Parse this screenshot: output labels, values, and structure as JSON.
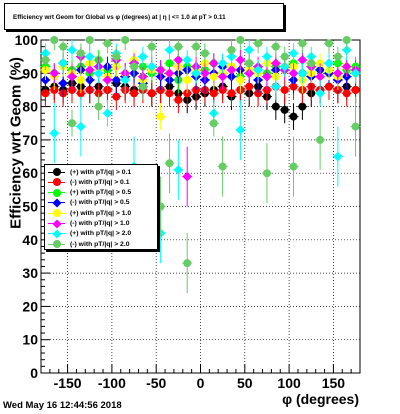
{
  "title": "Efficiency wrt Geom for Global vs φ (degrees) at | η | <= 1.0 at pT > 0.11",
  "footer": "Wed May 16 12:44:56 2018",
  "chart_data": {
    "type": "scatter",
    "xlabel": "φ (degrees)",
    "ylabel": "Efficiency wrt Geom (%)",
    "xlim": [
      -180,
      180
    ],
    "ylim": [
      0,
      100
    ],
    "xticks": [
      -150,
      -100,
      -50,
      0,
      50,
      100,
      150
    ],
    "yticks": [
      0,
      10,
      20,
      30,
      40,
      50,
      60,
      70,
      80,
      90,
      100
    ],
    "grid": true,
    "legend_position": "middle-left",
    "series": [
      {
        "name": "(+) with pT/|q| > 0.1",
        "color": "#000000",
        "marker": "circle",
        "x": [
          -175,
          -165,
          -155,
          -145,
          -135,
          -125,
          -115,
          -105,
          -95,
          -85,
          -75,
          -65,
          -55,
          -45,
          -35,
          -25,
          -15,
          -5,
          5,
          15,
          25,
          35,
          45,
          55,
          65,
          75,
          85,
          95,
          105,
          115,
          125,
          135,
          145,
          155,
          165,
          175
        ],
        "y": [
          85,
          86,
          85,
          87,
          86,
          85,
          86,
          85,
          87,
          86,
          85,
          86,
          84,
          85,
          86,
          84,
          82,
          83,
          84,
          85,
          86,
          83,
          85,
          84,
          86,
          83,
          80,
          79,
          77,
          80,
          84,
          85,
          86,
          85,
          86,
          85
        ]
      },
      {
        "name": "(-) with pT/|q| > 0.1",
        "color": "#ff0000",
        "marker": "circle",
        "x": [
          -175,
          -165,
          -155,
          -145,
          -135,
          -125,
          -115,
          -105,
          -95,
          -85,
          -75,
          -65,
          -55,
          -45,
          -35,
          -25,
          -15,
          -5,
          5,
          15,
          25,
          35,
          45,
          55,
          65,
          75,
          85,
          95,
          105,
          115,
          125,
          135,
          145,
          155,
          165,
          175
        ],
        "y": [
          84,
          85,
          84,
          85,
          84,
          85,
          84,
          85,
          83,
          85,
          84,
          85,
          84,
          85,
          84,
          82,
          84,
          85,
          85,
          84,
          85,
          84,
          85,
          86,
          84,
          85,
          86,
          85,
          86,
          85,
          86,
          85,
          86,
          85,
          84,
          85
        ]
      },
      {
        "name": "(+) with pT/|q| > 0.5",
        "color": "#00ff00",
        "marker": "circle",
        "x": [
          -175,
          -165,
          -155,
          -145,
          -135,
          -125,
          -115,
          -105,
          -95,
          -85,
          -75,
          -65,
          -55,
          -45,
          -35,
          -25,
          -15,
          -5,
          5,
          15,
          25,
          35,
          45,
          55,
          65,
          75,
          85,
          95,
          105,
          115,
          125,
          135,
          145,
          155,
          165,
          175
        ],
        "y": [
          92,
          90,
          93,
          91,
          92,
          90,
          94,
          91,
          92,
          89,
          93,
          92,
          90,
          91,
          93,
          88,
          92,
          90,
          91,
          93,
          90,
          92,
          89,
          93,
          91,
          90,
          92,
          91,
          93,
          90,
          92,
          91,
          90,
          93,
          91,
          92
        ]
      },
      {
        "name": "(-) with pT/|q| > 0.5",
        "color": "#0000ff",
        "marker": "diamond",
        "x": [
          -175,
          -165,
          -155,
          -145,
          -135,
          -125,
          -115,
          -105,
          -95,
          -85,
          -75,
          -65,
          -55,
          -45,
          -35,
          -25,
          -15,
          -5,
          5,
          15,
          25,
          35,
          45,
          55,
          65,
          75,
          85,
          95,
          105,
          115,
          125,
          135,
          145,
          155,
          165,
          175
        ],
        "y": [
          88,
          90,
          87,
          89,
          91,
          88,
          90,
          92,
          88,
          89,
          90,
          87,
          91,
          89,
          88,
          90,
          91,
          89,
          88,
          90,
          92,
          89,
          91,
          90,
          88,
          89,
          91,
          92,
          88,
          90,
          89,
          91,
          90,
          88,
          89,
          90
        ]
      },
      {
        "name": "(+) with pT/|q| > 1.0",
        "color": "#ffff00",
        "marker": "circle",
        "x": [
          -175,
          -165,
          -155,
          -145,
          -135,
          -125,
          -115,
          -105,
          -95,
          -85,
          -75,
          -65,
          -55,
          -45,
          -35,
          -25,
          -15,
          -5,
          5,
          15,
          25,
          35,
          45,
          55,
          65,
          75,
          85,
          95,
          105,
          115,
          125,
          135,
          145,
          155,
          165,
          175
        ],
        "y": [
          91,
          89,
          92,
          90,
          88,
          93,
          91,
          89,
          92,
          90,
          94,
          88,
          91,
          77,
          90,
          92,
          88,
          91,
          93,
          89,
          90,
          92,
          88,
          91,
          90,
          93,
          89,
          91,
          92,
          88,
          90,
          93,
          91,
          89,
          92,
          90
        ]
      },
      {
        "name": "(-) with pT/|q| > 1.0",
        "color": "#ff00ff",
        "marker": "diamond",
        "x": [
          -175,
          -165,
          -155,
          -145,
          -135,
          -125,
          -115,
          -105,
          -95,
          -85,
          -75,
          -65,
          -55,
          -45,
          -35,
          -25,
          -15,
          -5,
          5,
          15,
          25,
          35,
          45,
          55,
          65,
          75,
          85,
          95,
          105,
          115,
          125,
          135,
          145,
          155,
          165,
          175
        ],
        "y": [
          94,
          90,
          93,
          89,
          95,
          91,
          92,
          88,
          94,
          90,
          93,
          89,
          92,
          91,
          90,
          94,
          59,
          92,
          90,
          93,
          89,
          91,
          94,
          90,
          92,
          89,
          93,
          91,
          90,
          94,
          92,
          89,
          93,
          90,
          92,
          91
        ]
      },
      {
        "name": "(+) with pT/|q| > 2.0",
        "color": "#00ffff",
        "marker": "diamond",
        "x": [
          -175,
          -165,
          -155,
          -145,
          -135,
          -125,
          -115,
          -105,
          -95,
          -85,
          -75,
          -65,
          -55,
          -45,
          -35,
          -25,
          -15,
          -5,
          5,
          15,
          25,
          35,
          45,
          55,
          65,
          75,
          85,
          95,
          105,
          115,
          125,
          135,
          145,
          155,
          165,
          175
        ],
        "y": [
          96,
          72,
          93,
          97,
          74,
          95,
          90,
          78,
          96,
          88,
          62,
          95,
          92,
          42,
          97,
          61,
          94,
          90,
          96,
          78,
          93,
          95,
          73,
          97,
          91,
          95,
          86,
          92,
          96,
          90,
          95,
          84,
          93,
          65,
          97,
          90
        ]
      },
      {
        "name": "(-) with pT/|q| > 2.0",
        "color": "#66cc66",
        "marker": "circle",
        "x": [
          -175,
          -165,
          -155,
          -145,
          -135,
          -125,
          -115,
          -105,
          -95,
          -85,
          -75,
          -65,
          -55,
          -45,
          -35,
          -25,
          -15,
          -5,
          5,
          15,
          25,
          35,
          45,
          55,
          65,
          75,
          85,
          95,
          105,
          115,
          125,
          135,
          145,
          155,
          165,
          175
        ],
        "y": [
          94,
          100,
          98,
          75,
          96,
          100,
          80,
          99,
          95,
          100,
          92,
          86,
          98,
          50,
          63,
          98,
          33,
          98,
          96,
          75,
          62,
          97,
          100,
          93,
          99,
          60,
          98,
          95,
          62,
          99,
          93,
          70,
          99,
          95,
          100,
          74
        ]
      }
    ]
  }
}
